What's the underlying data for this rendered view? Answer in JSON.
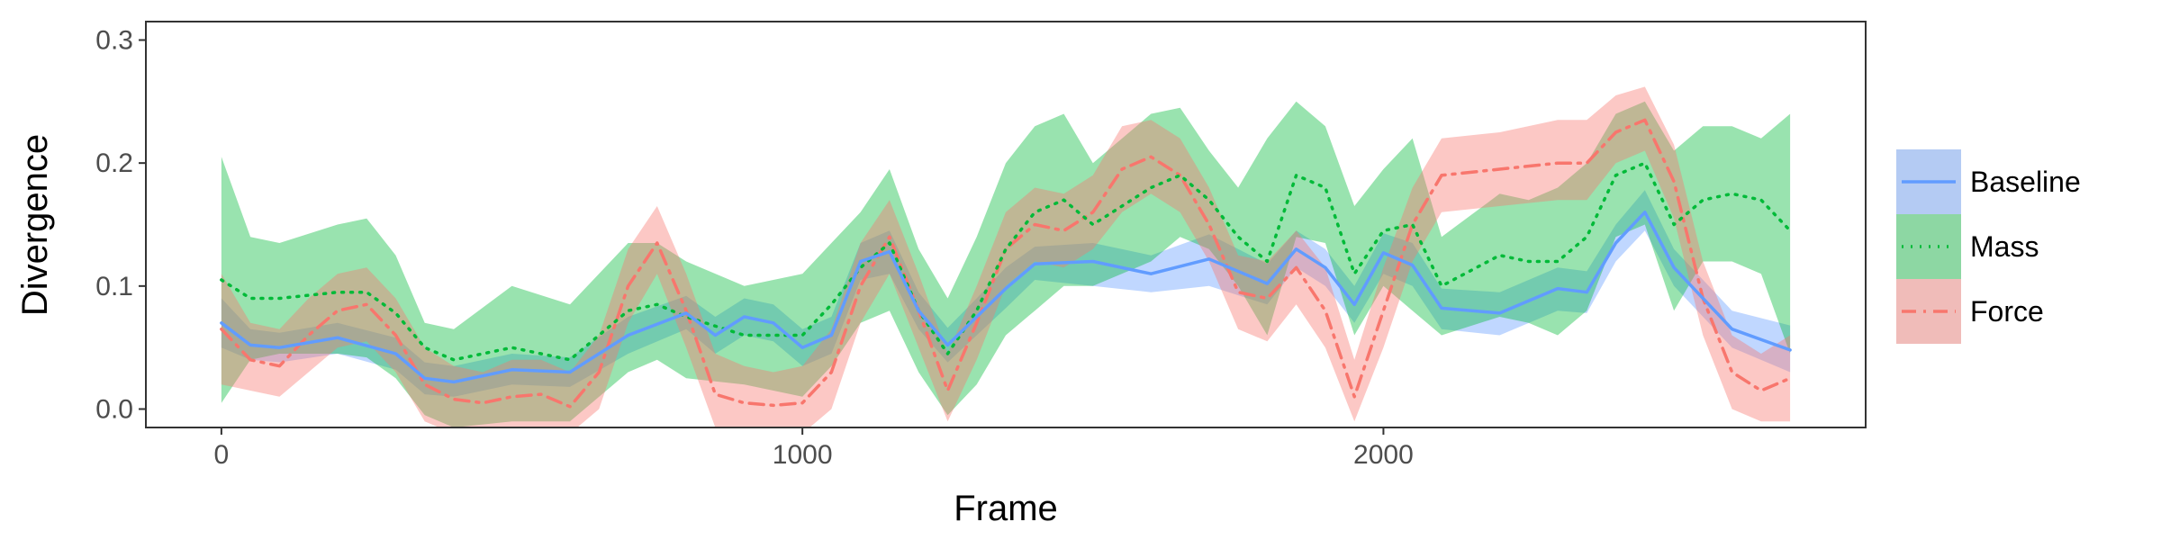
{
  "chart_data": {
    "type": "line",
    "title": "",
    "xlabel": "Frame",
    "ylabel": "Divergence",
    "xlim": [
      -130,
      2830
    ],
    "ylim": [
      -0.015,
      0.315
    ],
    "xticks": [
      0,
      1000,
      2000
    ],
    "xtick_labels": [
      "0",
      "1000",
      "2000"
    ],
    "yticks": [
      0.0,
      0.1,
      0.2,
      0.3
    ],
    "ytick_labels": [
      "0.0",
      "0.1",
      "0.2",
      "0.3"
    ],
    "grid": false,
    "legend": {
      "position": "right",
      "entries": [
        "Baseline",
        "Mass",
        "Force"
      ]
    },
    "series": [
      {
        "name": "Baseline",
        "color": "#619CFF",
        "linestyle": "solid",
        "x": [
          0,
          50,
          100,
          200,
          300,
          350,
          400,
          500,
          600,
          700,
          800,
          850,
          900,
          950,
          1000,
          1050,
          1100,
          1150,
          1200,
          1250,
          1300,
          1350,
          1400,
          1500,
          1600,
          1700,
          1800,
          1850,
          1900,
          1950,
          2000,
          2050,
          2100,
          2200,
          2300,
          2350,
          2400,
          2450,
          2500,
          2600,
          2700
        ],
        "y": [
          0.07,
          0.052,
          0.05,
          0.058,
          0.045,
          0.025,
          0.022,
          0.032,
          0.03,
          0.06,
          0.078,
          0.06,
          0.075,
          0.07,
          0.05,
          0.06,
          0.12,
          0.128,
          0.08,
          0.052,
          0.075,
          0.098,
          0.118,
          0.12,
          0.11,
          0.122,
          0.102,
          0.13,
          0.115,
          0.085,
          0.127,
          0.117,
          0.082,
          0.078,
          0.098,
          0.095,
          0.135,
          0.16,
          0.115,
          0.065,
          0.048
        ],
        "lower": [
          0.05,
          0.04,
          0.038,
          0.045,
          0.032,
          0.012,
          0.01,
          0.02,
          0.018,
          0.045,
          0.065,
          0.045,
          0.06,
          0.055,
          0.035,
          0.045,
          0.105,
          0.11,
          0.065,
          0.038,
          0.06,
          0.082,
          0.105,
          0.1,
          0.095,
          0.1,
          0.085,
          0.115,
          0.1,
          0.07,
          0.11,
          0.1,
          0.065,
          0.06,
          0.08,
          0.078,
          0.12,
          0.145,
          0.1,
          0.05,
          0.03
        ],
        "upper": [
          0.09,
          0.065,
          0.062,
          0.07,
          0.058,
          0.038,
          0.035,
          0.045,
          0.042,
          0.075,
          0.092,
          0.075,
          0.09,
          0.085,
          0.065,
          0.075,
          0.135,
          0.145,
          0.095,
          0.066,
          0.09,
          0.115,
          0.132,
          0.135,
          0.125,
          0.142,
          0.118,
          0.145,
          0.13,
          0.1,
          0.143,
          0.135,
          0.098,
          0.095,
          0.115,
          0.112,
          0.15,
          0.178,
          0.13,
          0.08,
          0.068
        ]
      },
      {
        "name": "Mass",
        "color": "#00BA38",
        "linestyle": "dotted",
        "x": [
          0,
          50,
          100,
          200,
          250,
          300,
          350,
          400,
          500,
          600,
          700,
          750,
          800,
          900,
          1000,
          1050,
          1100,
          1150,
          1200,
          1250,
          1300,
          1350,
          1400,
          1450,
          1500,
          1600,
          1650,
          1700,
          1750,
          1800,
          1850,
          1900,
          1950,
          2000,
          2050,
          2100,
          2200,
          2250,
          2300,
          2350,
          2400,
          2450,
          2500,
          2550,
          2600,
          2650,
          2700
        ],
        "y": [
          0.105,
          0.09,
          0.09,
          0.095,
          0.095,
          0.078,
          0.05,
          0.04,
          0.05,
          0.04,
          0.08,
          0.085,
          0.075,
          0.06,
          0.06,
          0.085,
          0.115,
          0.135,
          0.08,
          0.045,
          0.08,
          0.13,
          0.16,
          0.17,
          0.15,
          0.18,
          0.19,
          0.17,
          0.14,
          0.12,
          0.19,
          0.18,
          0.11,
          0.145,
          0.15,
          0.1,
          0.125,
          0.12,
          0.12,
          0.14,
          0.19,
          0.2,
          0.15,
          0.17,
          0.175,
          0.17,
          0.145
        ],
        "lower": [
          0.005,
          0.04,
          0.045,
          0.045,
          0.042,
          0.025,
          -0.005,
          -0.015,
          -0.01,
          -0.01,
          0.03,
          0.04,
          0.025,
          0.02,
          0.01,
          0.035,
          0.07,
          0.08,
          0.03,
          -0.005,
          0.02,
          0.06,
          0.08,
          0.1,
          0.1,
          0.12,
          0.14,
          0.13,
          0.1,
          0.06,
          0.14,
          0.135,
          0.06,
          0.1,
          0.08,
          0.06,
          0.075,
          0.07,
          0.06,
          0.08,
          0.14,
          0.15,
          0.08,
          0.12,
          0.12,
          0.11,
          0.045
        ],
        "upper": [
          0.205,
          0.14,
          0.135,
          0.15,
          0.155,
          0.125,
          0.07,
          0.065,
          0.1,
          0.085,
          0.135,
          0.135,
          0.12,
          0.1,
          0.11,
          0.135,
          0.16,
          0.195,
          0.13,
          0.09,
          0.14,
          0.2,
          0.23,
          0.24,
          0.2,
          0.24,
          0.245,
          0.21,
          0.18,
          0.22,
          0.25,
          0.23,
          0.165,
          0.195,
          0.22,
          0.14,
          0.175,
          0.17,
          0.18,
          0.2,
          0.24,
          0.25,
          0.21,
          0.23,
          0.23,
          0.22,
          0.24
        ]
      },
      {
        "name": "Force",
        "color": "#F8766D",
        "linestyle": "dashdot",
        "x": [
          0,
          50,
          100,
          150,
          200,
          250,
          300,
          350,
          400,
          450,
          500,
          550,
          600,
          650,
          700,
          750,
          800,
          850,
          900,
          950,
          1000,
          1050,
          1100,
          1150,
          1200,
          1250,
          1300,
          1350,
          1400,
          1450,
          1500,
          1550,
          1600,
          1650,
          1700,
          1750,
          1800,
          1850,
          1900,
          1950,
          2000,
          2050,
          2100,
          2200,
          2300,
          2350,
          2400,
          2450,
          2500,
          2550,
          2600,
          2650,
          2700
        ],
        "y": [
          0.065,
          0.04,
          0.035,
          0.06,
          0.08,
          0.085,
          0.06,
          0.02,
          0.008,
          0.005,
          0.01,
          0.012,
          0.002,
          0.03,
          0.1,
          0.135,
          0.08,
          0.012,
          0.005,
          0.003,
          0.005,
          0.03,
          0.1,
          0.14,
          0.08,
          0.015,
          0.07,
          0.13,
          0.15,
          0.145,
          0.16,
          0.195,
          0.205,
          0.19,
          0.15,
          0.095,
          0.09,
          0.115,
          0.08,
          0.01,
          0.08,
          0.15,
          0.19,
          0.195,
          0.2,
          0.2,
          0.225,
          0.235,
          0.185,
          0.09,
          0.03,
          0.015,
          0.025
        ],
        "lower": [
          0.02,
          0.015,
          0.01,
          0.03,
          0.05,
          0.055,
          0.03,
          -0.01,
          -0.02,
          -0.02,
          -0.015,
          -0.015,
          -0.02,
          0.0,
          0.07,
          0.11,
          0.05,
          -0.015,
          -0.02,
          -0.02,
          -0.02,
          0.0,
          0.07,
          0.11,
          0.05,
          -0.01,
          0.04,
          0.1,
          0.12,
          0.115,
          0.13,
          0.16,
          0.175,
          0.16,
          0.12,
          0.065,
          0.055,
          0.085,
          0.05,
          -0.01,
          0.05,
          0.12,
          0.16,
          0.165,
          0.17,
          0.17,
          0.2,
          0.21,
          0.155,
          0.06,
          0.0,
          -0.01,
          -0.01
        ],
        "upper": [
          0.11,
          0.07,
          0.065,
          0.09,
          0.11,
          0.115,
          0.09,
          0.05,
          0.035,
          0.03,
          0.04,
          0.04,
          0.03,
          0.06,
          0.13,
          0.165,
          0.11,
          0.045,
          0.035,
          0.03,
          0.035,
          0.065,
          0.135,
          0.17,
          0.11,
          0.045,
          0.1,
          0.16,
          0.18,
          0.175,
          0.19,
          0.23,
          0.235,
          0.22,
          0.18,
          0.125,
          0.12,
          0.145,
          0.115,
          0.04,
          0.115,
          0.18,
          0.22,
          0.225,
          0.235,
          0.235,
          0.255,
          0.262,
          0.215,
          0.12,
          0.06,
          0.045,
          0.06
        ]
      }
    ]
  }
}
